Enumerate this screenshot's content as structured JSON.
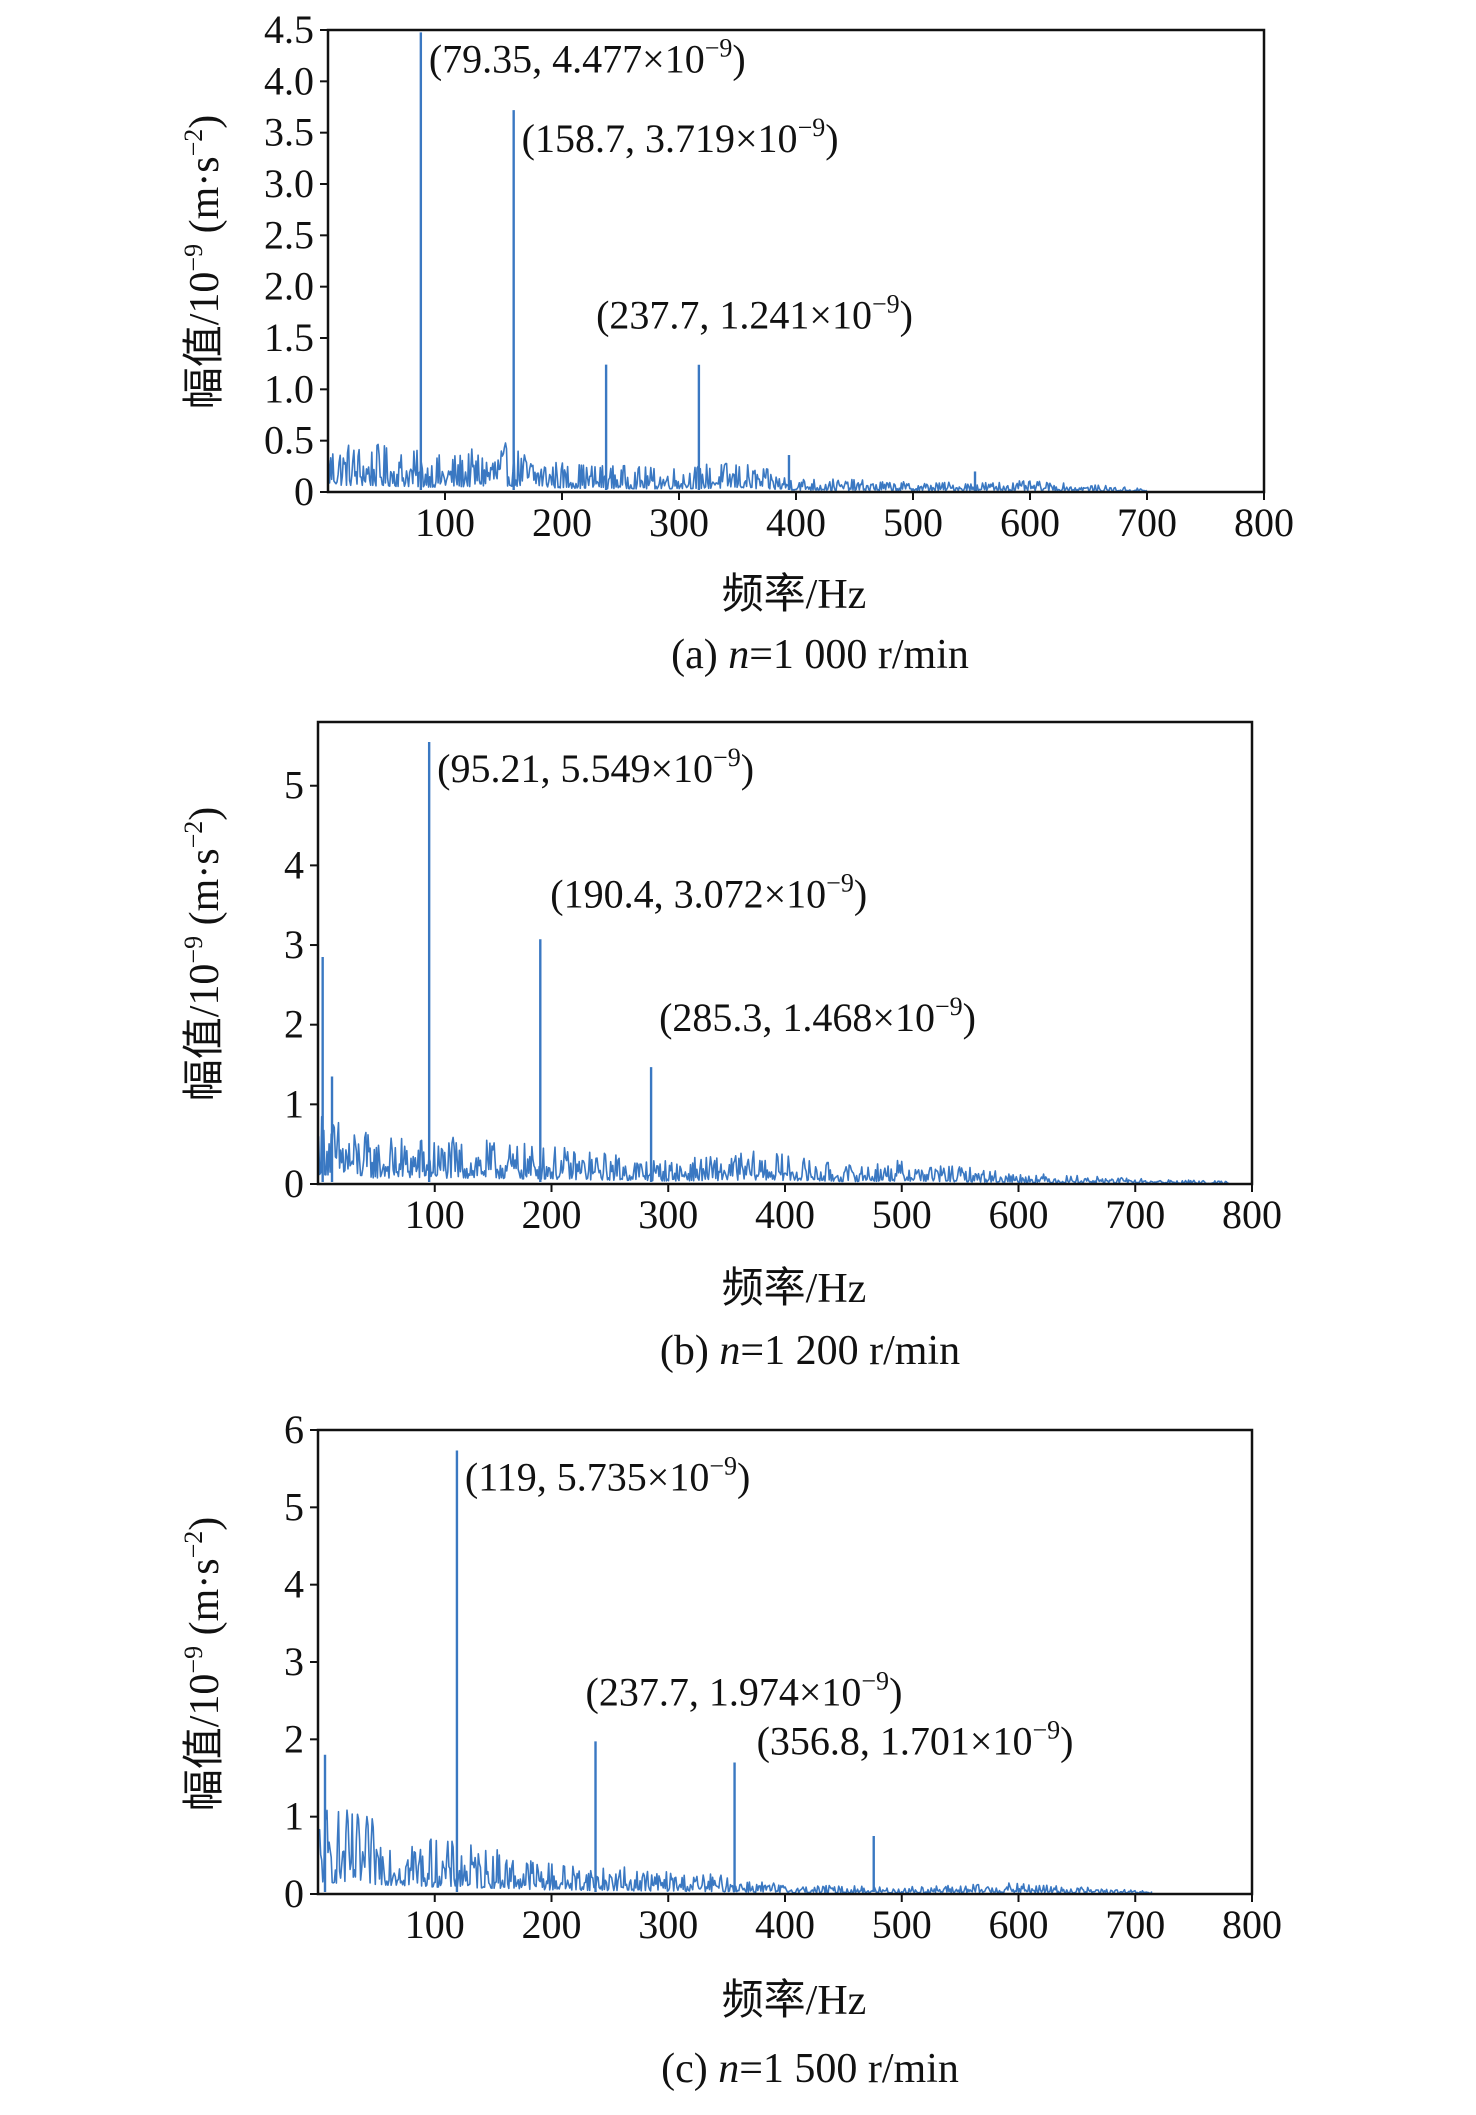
{
  "colors": {
    "series": "#3a78c2",
    "axis": "#111111"
  },
  "chart_data": [
    {
      "type": "line",
      "caption_prefix": "(a) ",
      "caption_var": "n",
      "caption_suffix": "=1 000 r/min",
      "xlabel": "频率/Hz",
      "ylabel_main": "幅值/10",
      "ylabel_exp": "−9",
      "ylabel_unit": " (m·s",
      "ylabel_unit_exp": "−2",
      "ylabel_close": ")",
      "xlim": [
        0,
        800
      ],
      "ylim": [
        0,
        4.5
      ],
      "xticks": [
        100,
        200,
        300,
        400,
        500,
        600,
        700,
        800
      ],
      "yticks": [
        0,
        0.5,
        1.0,
        1.5,
        2.0,
        2.5,
        3.0,
        3.5,
        4.0,
        4.5
      ],
      "ytick_labels": [
        "0",
        "0.5",
        "1.0",
        "1.5",
        "2.0",
        "2.5",
        "3.0",
        "3.5",
        "4.0",
        "4.5"
      ],
      "peaks": [
        {
          "x": 79.35,
          "y": 4.477,
          "label_text": "(79.35, 4.477×10",
          "label_exp": "−9",
          "label_close": ")"
        },
        {
          "x": 158.7,
          "y": 3.719,
          "label_text": "(158.7, 3.719×10",
          "label_exp": "−9",
          "label_close": ")"
        },
        {
          "x": 237.7,
          "y": 1.241,
          "label_text": "(237.7, 1.241×10",
          "label_exp": "−9",
          "label_close": ")"
        },
        {
          "x": 317.0,
          "y": 1.24
        },
        {
          "x": 394.0,
          "y": 0.36
        },
        {
          "x": 553.0,
          "y": 0.2
        }
      ],
      "noise_envelope": [
        [
          0,
          0.45
        ],
        [
          100,
          0.3
        ],
        [
          150,
          0.4
        ],
        [
          200,
          0.25
        ],
        [
          280,
          0.2
        ],
        [
          350,
          0.25
        ],
        [
          400,
          0.12
        ],
        [
          500,
          0.08
        ],
        [
          600,
          0.09
        ],
        [
          700,
          0.03
        ],
        [
          800,
          0.01
        ]
      ],
      "noise_end": 700
    },
    {
      "type": "line",
      "caption_prefix": "(b) ",
      "caption_var": "n",
      "caption_suffix": "=1 200 r/min",
      "xlabel": "频率/Hz",
      "ylabel_main": "幅值/10",
      "ylabel_exp": "−9",
      "ylabel_unit": " (m·s",
      "ylabel_unit_exp": "−2",
      "ylabel_close": ")",
      "xlim": [
        0,
        800
      ],
      "ylim": [
        0,
        5.8
      ],
      "xticks": [
        100,
        200,
        300,
        400,
        500,
        600,
        700,
        800
      ],
      "yticks": [
        0,
        1,
        2,
        3,
        4,
        5
      ],
      "ytick_labels": [
        "0",
        "1",
        "2",
        "3",
        "4",
        "5"
      ],
      "peaks": [
        {
          "x": 95.21,
          "y": 5.549,
          "label_text": "(95.21, 5.549×10",
          "label_exp": "−9",
          "label_close": ")"
        },
        {
          "x": 190.4,
          "y": 3.072,
          "label_text": "(190.4, 3.072×10",
          "label_exp": "−9",
          "label_close": ")"
        },
        {
          "x": 285.3,
          "y": 1.468,
          "label_text": "(285.3, 1.468×10",
          "label_exp": "−9",
          "label_close": ")"
        },
        {
          "x": 4.0,
          "y": 2.85
        },
        {
          "x": 12.0,
          "y": 1.35
        }
      ],
      "noise_envelope": [
        [
          0,
          0.8
        ],
        [
          50,
          0.5
        ],
        [
          100,
          0.5
        ],
        [
          200,
          0.4
        ],
        [
          300,
          0.25
        ],
        [
          380,
          0.35
        ],
        [
          450,
          0.2
        ],
        [
          500,
          0.25
        ],
        [
          600,
          0.12
        ],
        [
          700,
          0.06
        ],
        [
          800,
          0.02
        ]
      ],
      "noise_end": 780
    },
    {
      "type": "line",
      "caption_prefix": "(c) ",
      "caption_var": "n",
      "caption_suffix": "=1 500 r/min",
      "xlabel": "频率/Hz",
      "ylabel_main": "幅值/10",
      "ylabel_exp": "−9",
      "ylabel_unit": " (m·s",
      "ylabel_unit_exp": "−2",
      "ylabel_close": ")",
      "xlim": [
        0,
        800
      ],
      "ylim": [
        0,
        6
      ],
      "xticks": [
        100,
        200,
        300,
        400,
        500,
        600,
        700,
        800
      ],
      "yticks": [
        0,
        1,
        2,
        3,
        4,
        5,
        6
      ],
      "ytick_labels": [
        "0",
        "1",
        "2",
        "3",
        "4",
        "5",
        "6"
      ],
      "peaks": [
        {
          "x": 119,
          "y": 5.735,
          "label_text": "(119, 5.735×10",
          "label_exp": "−9",
          "label_close": ")"
        },
        {
          "x": 237.7,
          "y": 1.974,
          "label_text": "(237.7, 1.974×10",
          "label_exp": "−9",
          "label_close": ")"
        },
        {
          "x": 356.8,
          "y": 1.701,
          "label_text": "(356.8, 1.701×10",
          "label_exp": "−9",
          "label_close": ")"
        },
        {
          "x": 476,
          "y": 0.75
        },
        {
          "x": 6,
          "y": 1.8
        }
      ],
      "noise_envelope": [
        [
          0,
          1.0
        ],
        [
          100,
          0.6
        ],
        [
          150,
          0.5
        ],
        [
          200,
          0.35
        ],
        [
          300,
          0.25
        ],
        [
          350,
          0.2
        ],
        [
          400,
          0.1
        ],
        [
          500,
          0.08
        ],
        [
          600,
          0.12
        ],
        [
          700,
          0.04
        ],
        [
          800,
          0.0
        ]
      ],
      "noise_end": 715
    }
  ]
}
